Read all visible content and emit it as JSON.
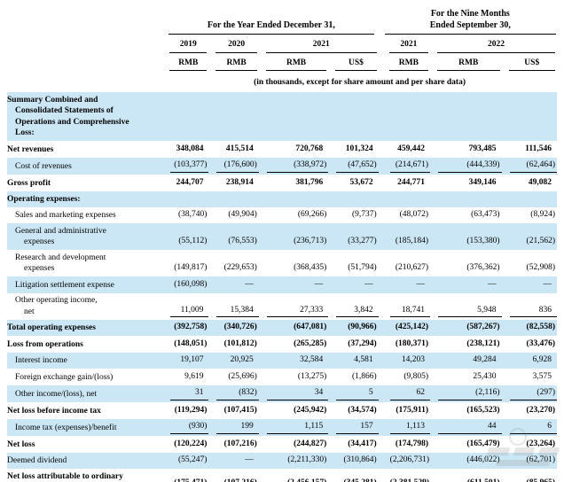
{
  "header": {
    "group1": "For the Year Ended December 31,",
    "group2": "For the Nine Months\nEnded September 30,",
    "years": [
      "2019",
      "2020",
      "2021",
      "2021",
      "2022"
    ],
    "currencies": [
      "RMB",
      "RMB",
      "RMB",
      "US$",
      "RMB",
      "RMB",
      "US$"
    ]
  },
  "note": "(in thousands, except for share amount and per share data)",
  "colors": {
    "row_highlight": "#cbe7f5",
    "text": "#000000",
    "rule": "#000000"
  },
  "watermark": "faint-gray-logo",
  "rows": [
    {
      "label": "Summary Combined and\nConsolidated Statements of\nOperations and Comprehensive\nLoss:",
      "bold": true,
      "indent": 0,
      "values": [
        "",
        "",
        "",
        "",
        "",
        "",
        ""
      ]
    },
    {
      "label": "Net revenues",
      "bold": true,
      "indent": 0,
      "values": [
        "348,084",
        "415,514",
        "720,768",
        "101,324",
        "459,442",
        "793,485",
        "111,546"
      ]
    },
    {
      "label": "Cost of revenues",
      "indent": 1,
      "underline": true,
      "values": [
        "(103,377)",
        "(176,600)",
        "(338,972)",
        "(47,652)",
        "(214,671)",
        "(444,339)",
        "(62,464)"
      ]
    },
    {
      "label": "Gross profit",
      "bold": true,
      "indent": 0,
      "values": [
        "244,707",
        "238,914",
        "381,796",
        "53,672",
        "244,771",
        "349,146",
        "49,082"
      ]
    },
    {
      "label": "Operating expenses:",
      "bold": true,
      "indent": 0,
      "values": [
        "",
        "",
        "",
        "",
        "",
        "",
        ""
      ]
    },
    {
      "label": "Sales and marketing expenses",
      "indent": 1,
      "values": [
        "(38,740)",
        "(49,904)",
        "(69,266)",
        "(9,737)",
        "(48,072)",
        "(63,473)",
        "(8,924)"
      ]
    },
    {
      "label": "General and administrative\nexpenses",
      "indent": 1,
      "values": [
        "(55,112)",
        "(76,553)",
        "(236,713)",
        "(33,277)",
        "(185,184)",
        "(153,380)",
        "(21,562)"
      ]
    },
    {
      "label": "Research and development\nexpenses",
      "indent": 1,
      "values": [
        "(149,817)",
        "(229,653)",
        "(368,435)",
        "(51,794)",
        "(210,627)",
        "(376,362)",
        "(52,908)"
      ]
    },
    {
      "label": "Litigation settlement expense",
      "indent": 1,
      "values": [
        "(160,098)",
        "—",
        "—",
        "—",
        "—",
        "—",
        "—"
      ]
    },
    {
      "label": "Other operating income,\nnet",
      "indent": 1,
      "underline": true,
      "values": [
        "11,009",
        "15,384",
        "27,333",
        "3,842",
        "18,741",
        "5,948",
        "836"
      ]
    },
    {
      "label": "Total operating expenses",
      "bold": true,
      "indent": 0,
      "values": [
        "(392,758)",
        "(340,726)",
        "(647,081)",
        "(90,966)",
        "(425,142)",
        "(587,267)",
        "(82,558)"
      ]
    },
    {
      "label": "Loss from operations",
      "bold": true,
      "indent": 0,
      "values": [
        "(148,051)",
        "(101,812)",
        "(265,285)",
        "(37,294)",
        "(180,371)",
        "(238,121)",
        "(33,476)"
      ]
    },
    {
      "label": "Interest income",
      "indent": 1,
      "values": [
        "19,107",
        "20,925",
        "32,584",
        "4,581",
        "14,203",
        "49,284",
        "6,928"
      ]
    },
    {
      "label": "Foreign exchange gain/(loss)",
      "indent": 1,
      "values": [
        "9,619",
        "(25,696)",
        "(13,275)",
        "(1,866)",
        "(9,805)",
        "25,430",
        "3,575"
      ]
    },
    {
      "label": "Other income/(loss), net",
      "indent": 1,
      "underline": true,
      "values": [
        "31",
        "(832)",
        "34",
        "5",
        "62",
        "(2,116)",
        "(297)"
      ]
    },
    {
      "label": "Net loss before income tax",
      "bold": true,
      "indent": 0,
      "values": [
        "(119,294)",
        "(107,415)",
        "(245,942)",
        "(34,574)",
        "(175,911)",
        "(165,523)",
        "(23,270)"
      ]
    },
    {
      "label": "Income tax (expenses)/benefit",
      "indent": 1,
      "underline": true,
      "values": [
        "(930)",
        "199",
        "1,115",
        "157",
        "1,113",
        "44",
        "6"
      ]
    },
    {
      "label": "Net loss",
      "bold": true,
      "indent": 0,
      "values": [
        "(120,224)",
        "(107,216)",
        "(244,827)",
        "(34,417)",
        "(174,798)",
        "(165,479)",
        "(23,264)"
      ]
    },
    {
      "label": "Deemed dividend",
      "indent": 0,
      "values": [
        "(55,247)",
        "—",
        "(2,211,330)",
        "(310,864)",
        "(2,206,731)",
        "(446,022)",
        "(62,701)"
      ]
    },
    {
      "label": "Net loss attributable to ordinary\nshareholders",
      "bold": true,
      "indent": 0,
      "final": true,
      "values": [
        "(175,471)",
        "(107,216)",
        "(2,456,157)",
        "(345,281)",
        "(2,381,529)",
        "(611,501)",
        "(85,965)"
      ]
    }
  ]
}
